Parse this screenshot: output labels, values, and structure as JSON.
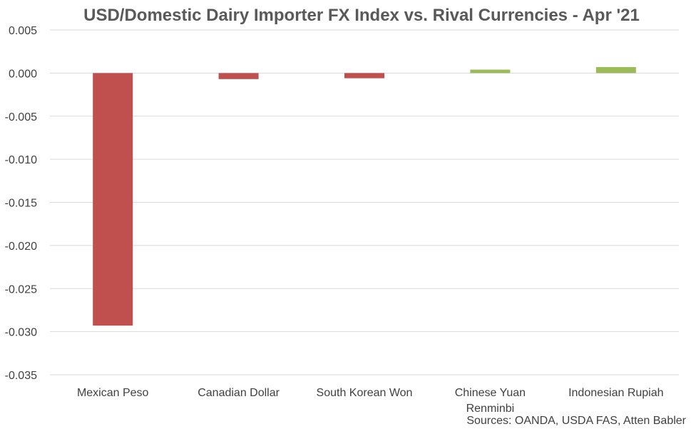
{
  "chart_data": {
    "type": "bar",
    "title": "USD/Domestic Dairy Importer FX Index vs. Rival Currencies - Apr '21",
    "categories": [
      "Mexican Peso",
      "Canadian Dollar",
      "South Korean Won",
      "Chinese Yuan Renminbi",
      "Indonesian Rupiah"
    ],
    "values": [
      -0.0293,
      -0.0007,
      -0.0006,
      0.0004,
      0.0007
    ],
    "ylim": [
      -0.035,
      0.005
    ],
    "yticks": [
      "0.005",
      "0.000",
      "-0.005",
      "-0.010",
      "-0.015",
      "-0.020",
      "-0.025",
      "-0.030",
      "-0.035"
    ],
    "grid": true,
    "colors": {
      "negative": "#c0504d",
      "positive": "#9bbb59"
    }
  },
  "source": "Sources: OANDA, USDA FAS, Atten Babler"
}
